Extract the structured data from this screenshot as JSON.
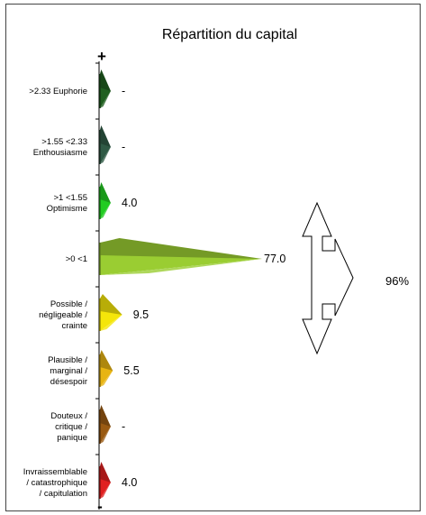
{
  "chart_data": {
    "type": "bar",
    "orientation": "horizontal",
    "title": "Répartition du capital",
    "axis_top_symbol": "+",
    "axis_bottom_symbol": "-",
    "categories": [
      {
        "lines": [
          ">2.33 Euphorie"
        ],
        "value_label": "-",
        "value": null,
        "color": "#1f5f1f"
      },
      {
        "lines": [
          ">1.55 <2.33",
          "Enthousiasme"
        ],
        "value_label": "-",
        "value": null,
        "color": "#2f5a45"
      },
      {
        "lines": [
          ">1 <1.55",
          "Optimisme"
        ],
        "value_label": "4.0",
        "value": 4.0,
        "color": "#22cc22"
      },
      {
        "lines": [
          ">0 <1"
        ],
        "value_label": "77.0",
        "value": 77.0,
        "color": "#9acd32"
      },
      {
        "lines": [
          "Possible /",
          "négligeable /",
          "crainte"
        ],
        "value_label": "9.5",
        "value": 9.5,
        "color": "#f5e60a"
      },
      {
        "lines": [
          "Plausible /",
          "marginal /",
          "désespoir"
        ],
        "value_label": "5.5",
        "value": 5.5,
        "color": "#e8b412"
      },
      {
        "lines": [
          "Douteux /",
          "critique /",
          "panique"
        ],
        "value_label": "-",
        "value": null,
        "color": "#9a5a12"
      },
      {
        "lines": [
          "Invraissemblable",
          "/ catastrophique",
          "/ capitulation"
        ],
        "value_label": "4.0",
        "value": 4.0,
        "color": "#e02020"
      }
    ],
    "annotation": {
      "text": "96%",
      "spans": ">0 <1 to Invraissemblable"
    }
  }
}
